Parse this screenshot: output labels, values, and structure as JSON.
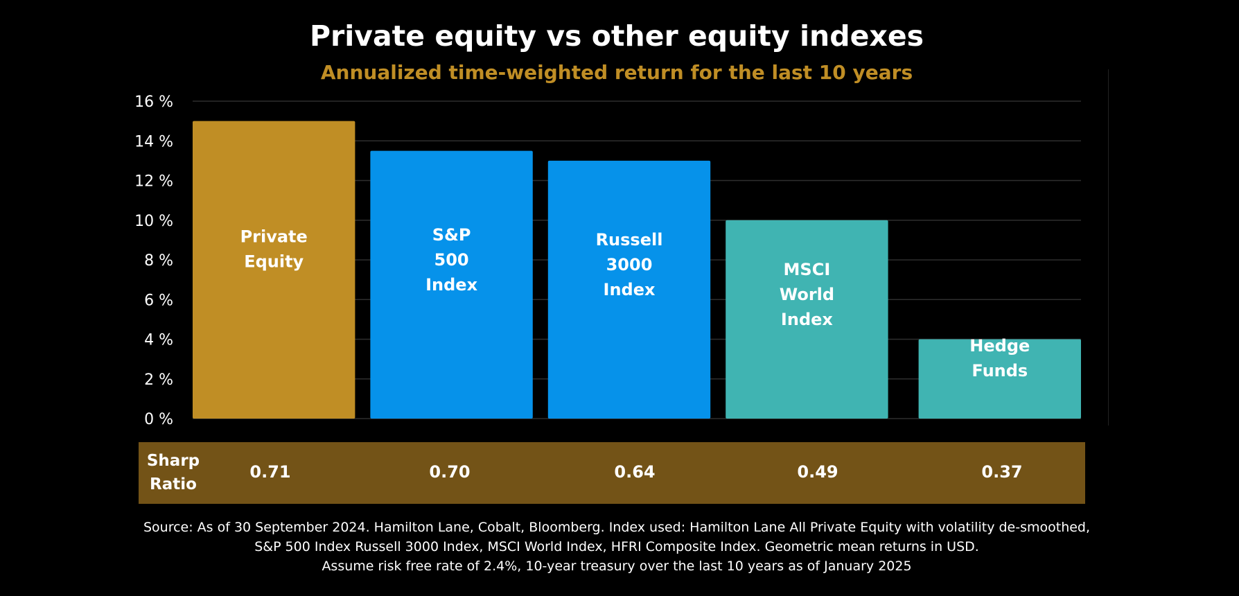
{
  "chart_data": {
    "type": "bar",
    "title": "Private equity vs other equity indexes",
    "subtitle": "Annualized time-weighted return for the last 10 years",
    "categories": [
      "Private\nEquity",
      "S&P\n500\nIndex",
      "Russell\n3000\nIndex",
      "MSCI\nWorld\nIndex",
      "Hedge\nFunds"
    ],
    "values": [
      15.0,
      13.5,
      13.0,
      10.0,
      4.0
    ],
    "colors": [
      "#c08e25",
      "#0692ea",
      "#0692ea",
      "#40b4b2",
      "#40b4b2"
    ],
    "ylim": [
      0,
      16
    ],
    "yticks": [
      0,
      2,
      4,
      6,
      8,
      10,
      12,
      14,
      16
    ],
    "ytick_labels": [
      "0 %",
      "2 %",
      "4 %",
      "6 %",
      "8 %",
      "10 %",
      "12 %",
      "14 %",
      "16 %"
    ],
    "grid": true,
    "legend": "none"
  },
  "sharpe": {
    "label": "Sharp\nRatio",
    "values": [
      "0.71",
      "0.70",
      "0.64",
      "0.49",
      "0.37"
    ],
    "band_color": "#735317"
  },
  "source": {
    "line1": "Source: As of 30 September 2024. Hamilton Lane, Cobalt, Bloomberg. Index used: Hamilton Lane All Private Equity with volatility de-smoothed,",
    "line2": "S&P 500 Index Russell 3000 Index, MSCI World Index, HFRI Composite Index. Geometric mean returns in USD.",
    "line3": "Assume risk free rate of 2.4%, 10-year treasury over the last 10 years as of January 2025"
  }
}
